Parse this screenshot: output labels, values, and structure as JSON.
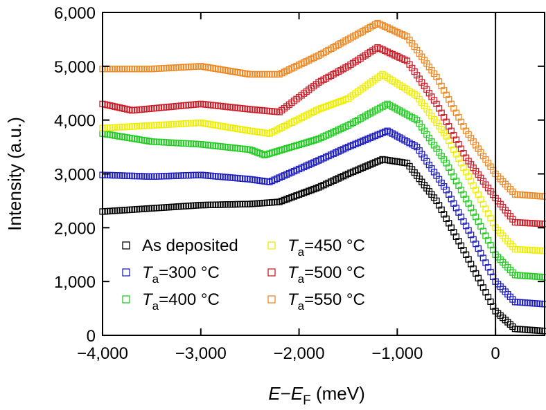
{
  "chart_data": {
    "type": "scatter",
    "title": "",
    "xlabel": {
      "parts": [
        {
          "text": "E",
          "style": "italic"
        },
        {
          "text": "−",
          "style": "normal"
        },
        {
          "text": "E",
          "style": "italic"
        },
        {
          "text": "F",
          "style": "sub"
        },
        {
          "text": " (meV)",
          "style": "normal"
        }
      ]
    },
    "ylabel": "Intensity (a.u.)",
    "xlim": [
      -4000,
      500
    ],
    "ylim": [
      0,
      6000
    ],
    "xticks": [
      -4000,
      -3000,
      -2000,
      -1000,
      0
    ],
    "xtick_labels": [
      "−4,000",
      "−3,000",
      "−2,000",
      "−1,000",
      "0"
    ],
    "yticks": [
      0,
      1000,
      2000,
      3000,
      4000,
      5000,
      6000
    ],
    "ytick_labels": [
      "0",
      "1,000",
      "2,000",
      "3,000",
      "4,000",
      "5,000",
      "6,000"
    ],
    "reference_line_x": 0,
    "grid": false,
    "legend_position": "bottom-left",
    "marker": "open-square",
    "series": [
      {
        "legend": [
          {
            "text": "As deposited",
            "style": "normal"
          }
        ],
        "color": "#000000",
        "points": [
          [
            -4000,
            2300
          ],
          [
            -3500,
            2360
          ],
          [
            -3000,
            2420
          ],
          [
            -2500,
            2440
          ],
          [
            -2200,
            2480
          ],
          [
            -1800,
            2750
          ],
          [
            -1500,
            3000
          ],
          [
            -1150,
            3270
          ],
          [
            -900,
            3200
          ],
          [
            -600,
            2500
          ],
          [
            -300,
            1500
          ],
          [
            -100,
            800
          ],
          [
            0,
            450
          ],
          [
            200,
            120
          ],
          [
            500,
            80
          ]
        ]
      },
      {
        "legend": [
          {
            "text": "T",
            "style": "italic"
          },
          {
            "text": "a",
            "style": "sub"
          },
          {
            "text": "=300 °C",
            "style": "normal"
          }
        ],
        "color": "#1f1fbf",
        "points": [
          [
            -4000,
            2980
          ],
          [
            -3500,
            2950
          ],
          [
            -3000,
            2980
          ],
          [
            -2500,
            2900
          ],
          [
            -2300,
            2850
          ],
          [
            -1800,
            3250
          ],
          [
            -1500,
            3500
          ],
          [
            -1100,
            3800
          ],
          [
            -800,
            3500
          ],
          [
            -500,
            2700
          ],
          [
            -200,
            1700
          ],
          [
            0,
            1000
          ],
          [
            200,
            620
          ],
          [
            500,
            580
          ]
        ]
      },
      {
        "legend": [
          {
            "text": "T",
            "style": "italic"
          },
          {
            "text": "a",
            "style": "sub"
          },
          {
            "text": "=400 °C",
            "style": "normal"
          }
        ],
        "color": "#22cc22",
        "points": [
          [
            -4000,
            3750
          ],
          [
            -3500,
            3600
          ],
          [
            -3000,
            3550
          ],
          [
            -2500,
            3450
          ],
          [
            -2350,
            3350
          ],
          [
            -1800,
            3650
          ],
          [
            -1500,
            3900
          ],
          [
            -1100,
            4300
          ],
          [
            -800,
            4000
          ],
          [
            -500,
            3200
          ],
          [
            -200,
            2200
          ],
          [
            0,
            1500
          ],
          [
            200,
            1120
          ],
          [
            500,
            1080
          ]
        ]
      },
      {
        "legend": [
          {
            "text": "T",
            "style": "italic"
          },
          {
            "text": "a",
            "style": "sub"
          },
          {
            "text": "=450 °C",
            "style": "normal"
          }
        ],
        "color": "#eeee00",
        "points": [
          [
            -4000,
            3850
          ],
          [
            -3500,
            3900
          ],
          [
            -3000,
            3950
          ],
          [
            -2500,
            3800
          ],
          [
            -2300,
            3750
          ],
          [
            -1800,
            4200
          ],
          [
            -1500,
            4400
          ],
          [
            -1150,
            4850
          ],
          [
            -800,
            4450
          ],
          [
            -500,
            3700
          ],
          [
            -200,
            2700
          ],
          [
            0,
            2000
          ],
          [
            200,
            1600
          ],
          [
            500,
            1570
          ]
        ]
      },
      {
        "legend": [
          {
            "text": "T",
            "style": "italic"
          },
          {
            "text": "a",
            "style": "sub"
          },
          {
            "text": "=500 °C",
            "style": "normal"
          }
        ],
        "color": "#cc1f2a",
        "points": [
          [
            -4000,
            4300
          ],
          [
            -3700,
            4180
          ],
          [
            -3000,
            4300
          ],
          [
            -2500,
            4200
          ],
          [
            -2200,
            4150
          ],
          [
            -1800,
            4700
          ],
          [
            -1500,
            5000
          ],
          [
            -1200,
            5350
          ],
          [
            -900,
            5100
          ],
          [
            -600,
            4300
          ],
          [
            -300,
            3300
          ],
          [
            0,
            2550
          ],
          [
            200,
            2100
          ],
          [
            500,
            2070
          ]
        ]
      },
      {
        "legend": [
          {
            "text": "T",
            "style": "italic"
          },
          {
            "text": "a",
            "style": "sub"
          },
          {
            "text": "=550 °C",
            "style": "normal"
          }
        ],
        "color": "#ee8822",
        "points": [
          [
            -4000,
            4950
          ],
          [
            -3500,
            4950
          ],
          [
            -3000,
            5000
          ],
          [
            -2500,
            4850
          ],
          [
            -2200,
            4850
          ],
          [
            -1800,
            5200
          ],
          [
            -1500,
            5500
          ],
          [
            -1200,
            5800
          ],
          [
            -900,
            5550
          ],
          [
            -600,
            4800
          ],
          [
            -300,
            3800
          ],
          [
            0,
            3000
          ],
          [
            200,
            2620
          ],
          [
            500,
            2580
          ]
        ]
      }
    ]
  }
}
